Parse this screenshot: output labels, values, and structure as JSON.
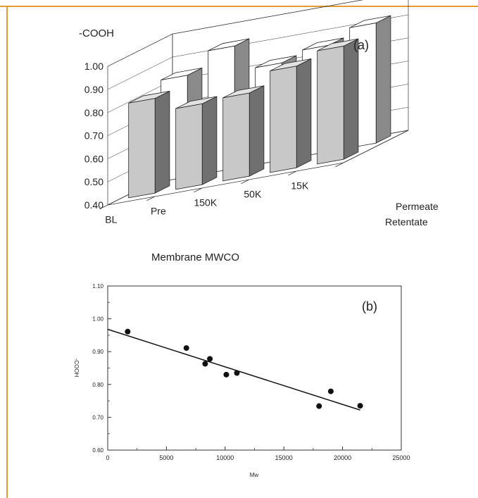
{
  "colors": {
    "frame": "#e39a2f",
    "retentate_front": "#c8c8c8",
    "retentate_side": "#707070",
    "retentate_top": "#e2e2e2",
    "permeate_front": "#ffffff",
    "permeate_side": "#8a8a8a",
    "axis": "#333333",
    "points": "#111111"
  },
  "chart_data": [
    {
      "panel": "(a)",
      "type": "bar",
      "style": "3d-grouped",
      "title": "-COOH",
      "xlabel": "Membrane MWCO",
      "categories": [
        "BL",
        "Pre",
        "150K",
        "50K",
        "15K"
      ],
      "depth_labels": [
        "Permeate",
        "Retentate"
      ],
      "series": [
        {
          "name": "Retentate",
          "values": [
            0.81,
            0.75,
            0.76,
            0.84,
            0.89
          ]
        },
        {
          "name": "Permeate",
          "values": [
            0.84,
            0.93,
            0.82,
            0.86,
            0.92
          ]
        }
      ],
      "ylim": [
        0.4,
        1.0
      ],
      "yticks": [
        "0.40",
        "0.50",
        "0.60",
        "0.70",
        "0.80",
        "0.90",
        "1.00"
      ]
    },
    {
      "panel": "(b)",
      "type": "scatter",
      "xlabel": "Mw",
      "ylabel": "-COOH",
      "xlim": [
        0,
        25000
      ],
      "ylim": [
        0.6,
        1.1
      ],
      "xticks": [
        "0",
        "5000",
        "10000",
        "15000",
        "20000",
        "25000"
      ],
      "yticks": [
        "0.60",
        "0.70",
        "0.80",
        "0.90",
        "1.00",
        "1.10"
      ],
      "points": [
        {
          "x": 1700,
          "y": 0.961
        },
        {
          "x": 6700,
          "y": 0.911
        },
        {
          "x": 8300,
          "y": 0.863
        },
        {
          "x": 8700,
          "y": 0.878
        },
        {
          "x": 10100,
          "y": 0.83
        },
        {
          "x": 11000,
          "y": 0.835
        },
        {
          "x": 18000,
          "y": 0.734
        },
        {
          "x": 19000,
          "y": 0.779
        },
        {
          "x": 21500,
          "y": 0.735
        }
      ],
      "fit_line": {
        "x": [
          0,
          21500
        ],
        "y": [
          0.968,
          0.722
        ]
      }
    }
  ]
}
